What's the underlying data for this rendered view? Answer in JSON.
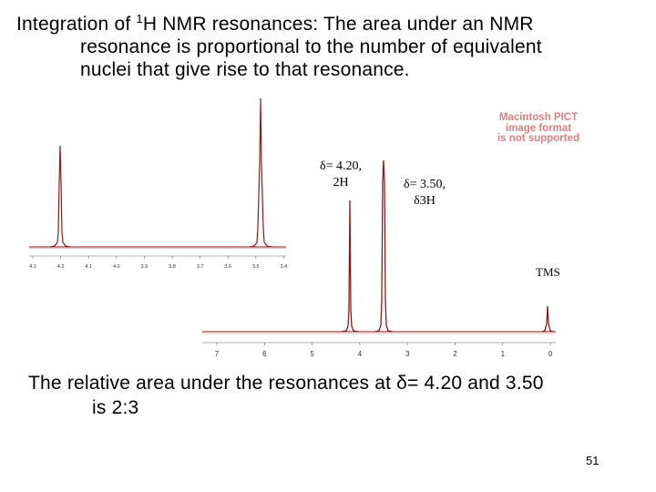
{
  "title": {
    "part1": "Integration of ",
    "sup": "1",
    "part2": "H NMR resonances: The area under an NMR",
    "line2": "resonance is proportional to the number of equivalent",
    "line3": "nuclei that give rise to that resonance."
  },
  "pict_placeholder": {
    "line1": "Macintosh PICT",
    "line2": "image format",
    "line3": "is not supported"
  },
  "peak_labels": {
    "ch2": {
      "line1": "δ= 4.20,",
      "line2": "2H"
    },
    "ch3": {
      "line1": "δ= 3.50,",
      "line2": "δ3H"
    },
    "tms": "TMS"
  },
  "main_axis_ticks": [
    "7",
    "6",
    "5",
    "4",
    "3",
    "2",
    "1",
    "0"
  ],
  "inset_axis_ticks": [
    "4.3",
    "4.2",
    "4.1",
    "4.0",
    "3.9",
    "3.8",
    "3.7",
    "3.6",
    "3.5",
    "3.4"
  ],
  "conclusion": {
    "line1": "The relative area under the resonances at δ= 4.20 and 3.50",
    "line2": "is 2:3"
  },
  "page_number": "51",
  "colors": {
    "spectrum_line": "#8b1a1a",
    "pict_text": "#d98080"
  }
}
